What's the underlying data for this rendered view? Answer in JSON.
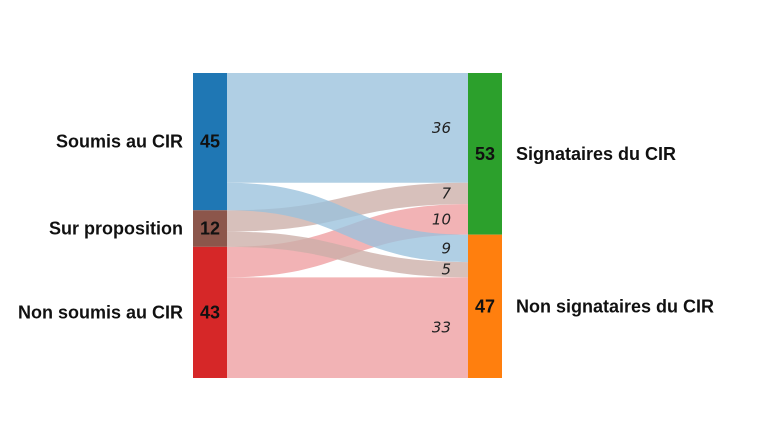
{
  "chart_data": {
    "type": "sankey",
    "source_nodes": [
      {
        "name": "Soumis au CIR",
        "value": 45,
        "color": "#1f77b4"
      },
      {
        "name": "Sur proposition",
        "value": 12,
        "color": "#8c564b"
      },
      {
        "name": "Non soumis au CIR",
        "value": 43,
        "color": "#d62728"
      }
    ],
    "target_nodes": [
      {
        "name": "Signataires du CIR",
        "value": 53,
        "color": "#2ca02c"
      },
      {
        "name": "Non signataires du CIR",
        "value": 47,
        "color": "#ff7f0e"
      }
    ],
    "flows": [
      {
        "source": 0,
        "target": 0,
        "value": 36,
        "color": "#9ac2dc"
      },
      {
        "source": 1,
        "target": 0,
        "value": 7,
        "color": "#ccaea8"
      },
      {
        "source": 2,
        "target": 0,
        "value": 10,
        "color": "#ee9ea0"
      },
      {
        "source": 0,
        "target": 1,
        "value": 9,
        "color": "#9ac2dc"
      },
      {
        "source": 1,
        "target": 1,
        "value": 5,
        "color": "#ccaea8"
      },
      {
        "source": 2,
        "target": 1,
        "value": 33,
        "color": "#ee9ea0"
      }
    ]
  }
}
